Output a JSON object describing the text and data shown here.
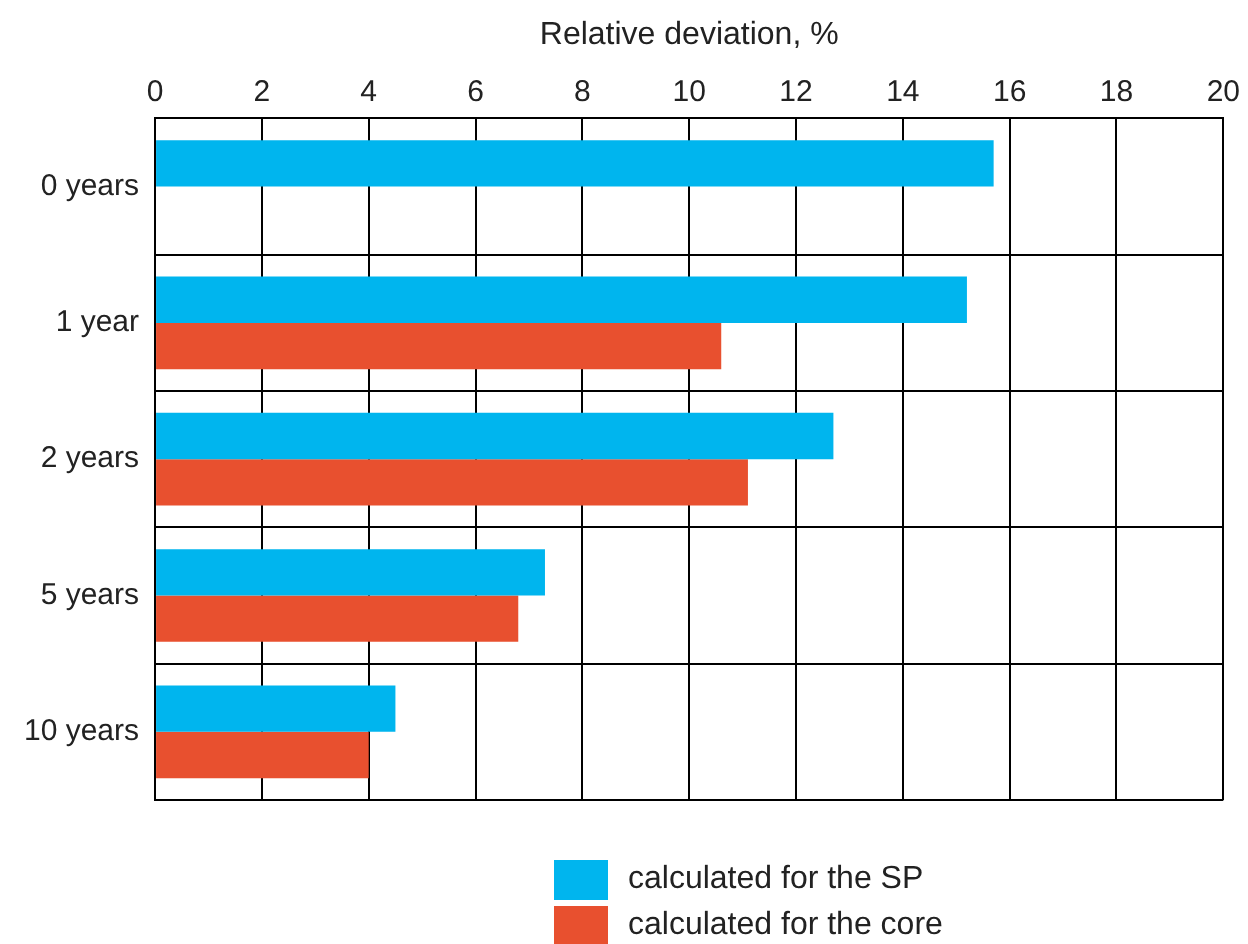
{
  "chart_data": {
    "type": "bar",
    "orientation": "horizontal",
    "xlabel": "Relative deviation, %",
    "categories": [
      "0 years",
      "1 year",
      "2 years",
      "5 years",
      "10 years"
    ],
    "series": [
      {
        "name": "calculated for the SP",
        "color": "#00b5ee",
        "values": [
          15.7,
          15.2,
          12.7,
          7.3,
          4.5
        ]
      },
      {
        "name": "calculated for the core",
        "color": "#e8502f",
        "values": [
          null,
          10.6,
          11.1,
          6.8,
          4.0
        ]
      }
    ],
    "xlim": [
      0,
      20
    ],
    "xticks": [
      0,
      2,
      4,
      6,
      8,
      10,
      12,
      14,
      16,
      18,
      20
    ],
    "grid": true,
    "legend": "bottom"
  }
}
